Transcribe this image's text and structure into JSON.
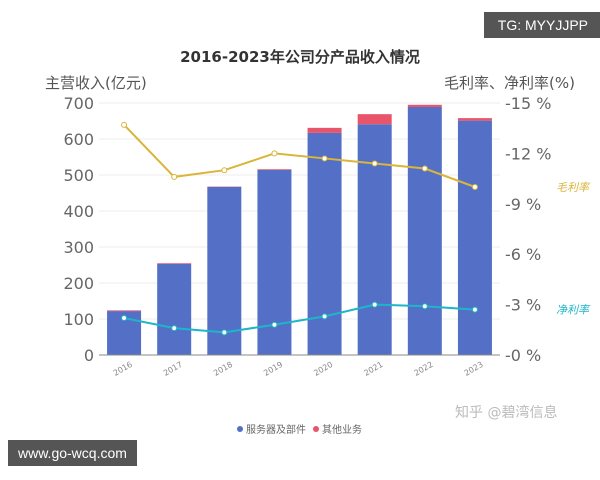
{
  "overlay": {
    "tg": "TG: MYYJJPP",
    "site": "www.go-wcq.com",
    "credit": "知乎 @碧湾信息"
  },
  "chart_data": {
    "type": "bar",
    "title": "2016-2023年公司分产品收入情况",
    "ylabel": "主营收入(亿元)",
    "y2label": "毛利率、净利率(%)",
    "ylim": [
      0,
      700
    ],
    "y2lim": [
      0,
      15
    ],
    "yticks": [
      "0",
      "100",
      "200",
      "300",
      "400",
      "500",
      "600",
      "700"
    ],
    "y2ticks": [
      "0 %",
      "3 %",
      "6 %",
      "9 %",
      "12 %",
      "15 %"
    ],
    "categories": [
      "2016",
      "2017",
      "2018",
      "2019",
      "2020",
      "2021",
      "2022",
      "2023"
    ],
    "grid": true,
    "legend_position": "bottom",
    "series": [
      {
        "name": "服务器及部件",
        "type": "bar",
        "stack": "revenue",
        "color": "#5470c6",
        "values": [
          122,
          253,
          467,
          514,
          617,
          641,
          689,
          651
        ]
      },
      {
        "name": "其他业务",
        "type": "bar",
        "stack": "revenue",
        "color": "#e8546a",
        "values": [
          2,
          2,
          1,
          2,
          14,
          28,
          6,
          7
        ]
      },
      {
        "name": "毛利率",
        "type": "line",
        "axis": "right",
        "color": "#d9b53a",
        "values": [
          13.7,
          10.6,
          11.0,
          12.0,
          11.7,
          11.4,
          11.1,
          10.0
        ]
      },
      {
        "name": "净利率",
        "type": "line",
        "axis": "right",
        "color": "#1fb5c9",
        "values": [
          2.2,
          1.6,
          1.35,
          1.8,
          2.3,
          3.0,
          2.9,
          2.7
        ]
      }
    ]
  }
}
